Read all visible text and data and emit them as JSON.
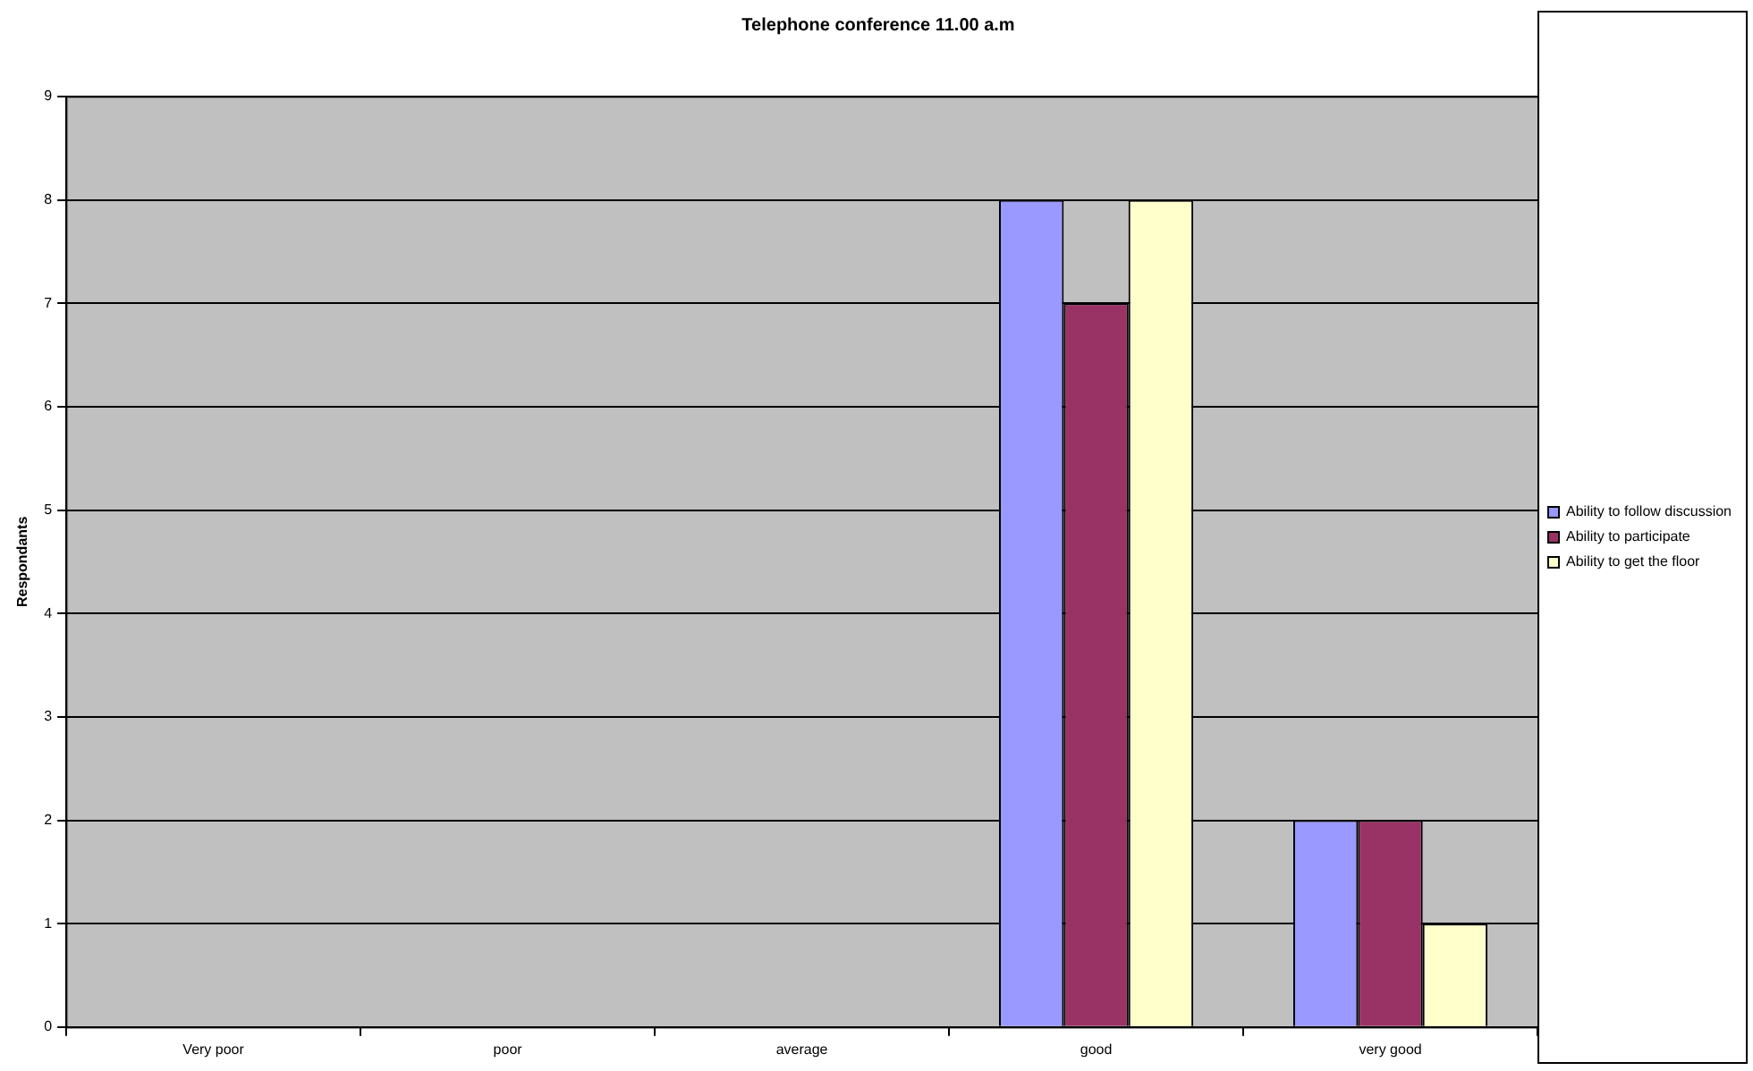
{
  "chart_data": {
    "type": "bar",
    "title": "Telephone conference 11.00 a.m",
    "ylabel": "Respondants",
    "categories": [
      "Very poor",
      "poor",
      "average",
      "good",
      "very good"
    ],
    "series": [
      {
        "name": "Ability to follow discussion",
        "color": "#9999ff",
        "values": [
          0,
          0,
          0,
          8,
          2
        ]
      },
      {
        "name": "Ability to participate",
        "color": "#993366",
        "values": [
          0,
          0,
          0,
          7,
          2
        ]
      },
      {
        "name": "Ability to get the floor",
        "color": "#ffffcc",
        "values": [
          0,
          0,
          0,
          8,
          1
        ]
      }
    ],
    "ylim": [
      0,
      9
    ],
    "yticks": [
      0,
      1,
      2,
      3,
      4,
      5,
      6,
      7,
      8,
      9
    ],
    "grid": "y",
    "legend": "right"
  }
}
